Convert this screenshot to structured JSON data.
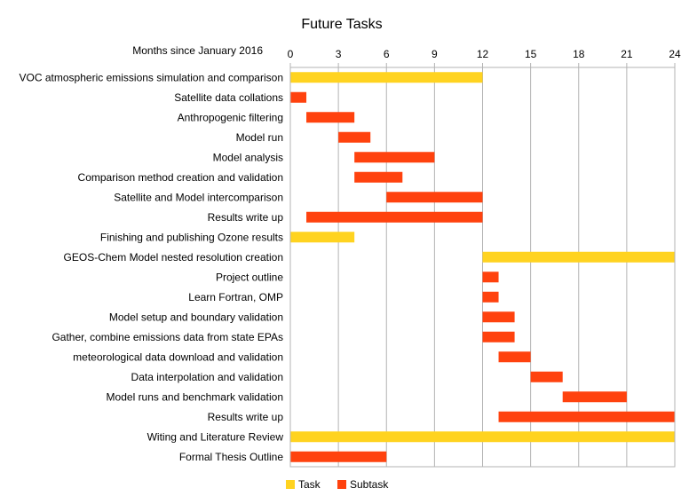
{
  "chart_data": {
    "type": "gantt",
    "title": "Future Tasks",
    "xlabel": "Months since January 2016",
    "xlim": [
      0,
      24
    ],
    "x_ticks": [
      0,
      3,
      6,
      9,
      12,
      15,
      18,
      21,
      24
    ],
    "grid": true,
    "legend_position": "bottom",
    "legend": [
      {
        "name": "Task",
        "color": "#FFD320"
      },
      {
        "name": "Subtask",
        "color": "#FF420E"
      }
    ],
    "rows": [
      {
        "label": "VOC atmospheric emissions simulation and comparison",
        "start": 0,
        "end": 12,
        "kind": "Task"
      },
      {
        "label": "Satellite data collations",
        "start": 0,
        "end": 1,
        "kind": "Subtask"
      },
      {
        "label": "Anthropogenic filtering",
        "start": 1,
        "end": 4,
        "kind": "Subtask"
      },
      {
        "label": "Model run",
        "start": 3,
        "end": 5,
        "kind": "Subtask"
      },
      {
        "label": "Model analysis",
        "start": 4,
        "end": 9,
        "kind": "Subtask"
      },
      {
        "label": "Comparison method creation and validation",
        "start": 4,
        "end": 7,
        "kind": "Subtask"
      },
      {
        "label": "Satellite and Model intercomparison",
        "start": 6,
        "end": 12,
        "kind": "Subtask"
      },
      {
        "label": "Results write up",
        "start": 1,
        "end": 12,
        "kind": "Subtask"
      },
      {
        "label": "Finishing and publishing Ozone results",
        "start": 0,
        "end": 4,
        "kind": "Task"
      },
      {
        "label": "GEOS-Chem Model nested resolution creation",
        "start": 12,
        "end": 24,
        "kind": "Task"
      },
      {
        "label": "Project outline",
        "start": 12,
        "end": 13,
        "kind": "Subtask"
      },
      {
        "label": "Learn Fortran, OMP",
        "start": 12,
        "end": 13,
        "kind": "Subtask"
      },
      {
        "label": "Model setup and boundary validation",
        "start": 12,
        "end": 14,
        "kind": "Subtask"
      },
      {
        "label": "Gather, combine emissions data from state EPAs",
        "start": 12,
        "end": 14,
        "kind": "Subtask"
      },
      {
        "label": "meteorological data download and validation",
        "start": 13,
        "end": 15,
        "kind": "Subtask"
      },
      {
        "label": "Data interpolation and validation",
        "start": 15,
        "end": 17,
        "kind": "Subtask"
      },
      {
        "label": "Model runs and benchmark validation",
        "start": 17,
        "end": 21,
        "kind": "Subtask"
      },
      {
        "label": "Results write up",
        "start": 13,
        "end": 24,
        "kind": "Subtask"
      },
      {
        "label": "Witing and Literature Review",
        "start": 0,
        "end": 24,
        "kind": "Task"
      },
      {
        "label": "Formal Thesis Outline",
        "start": 0,
        "end": 6,
        "kind": "Subtask"
      }
    ]
  }
}
